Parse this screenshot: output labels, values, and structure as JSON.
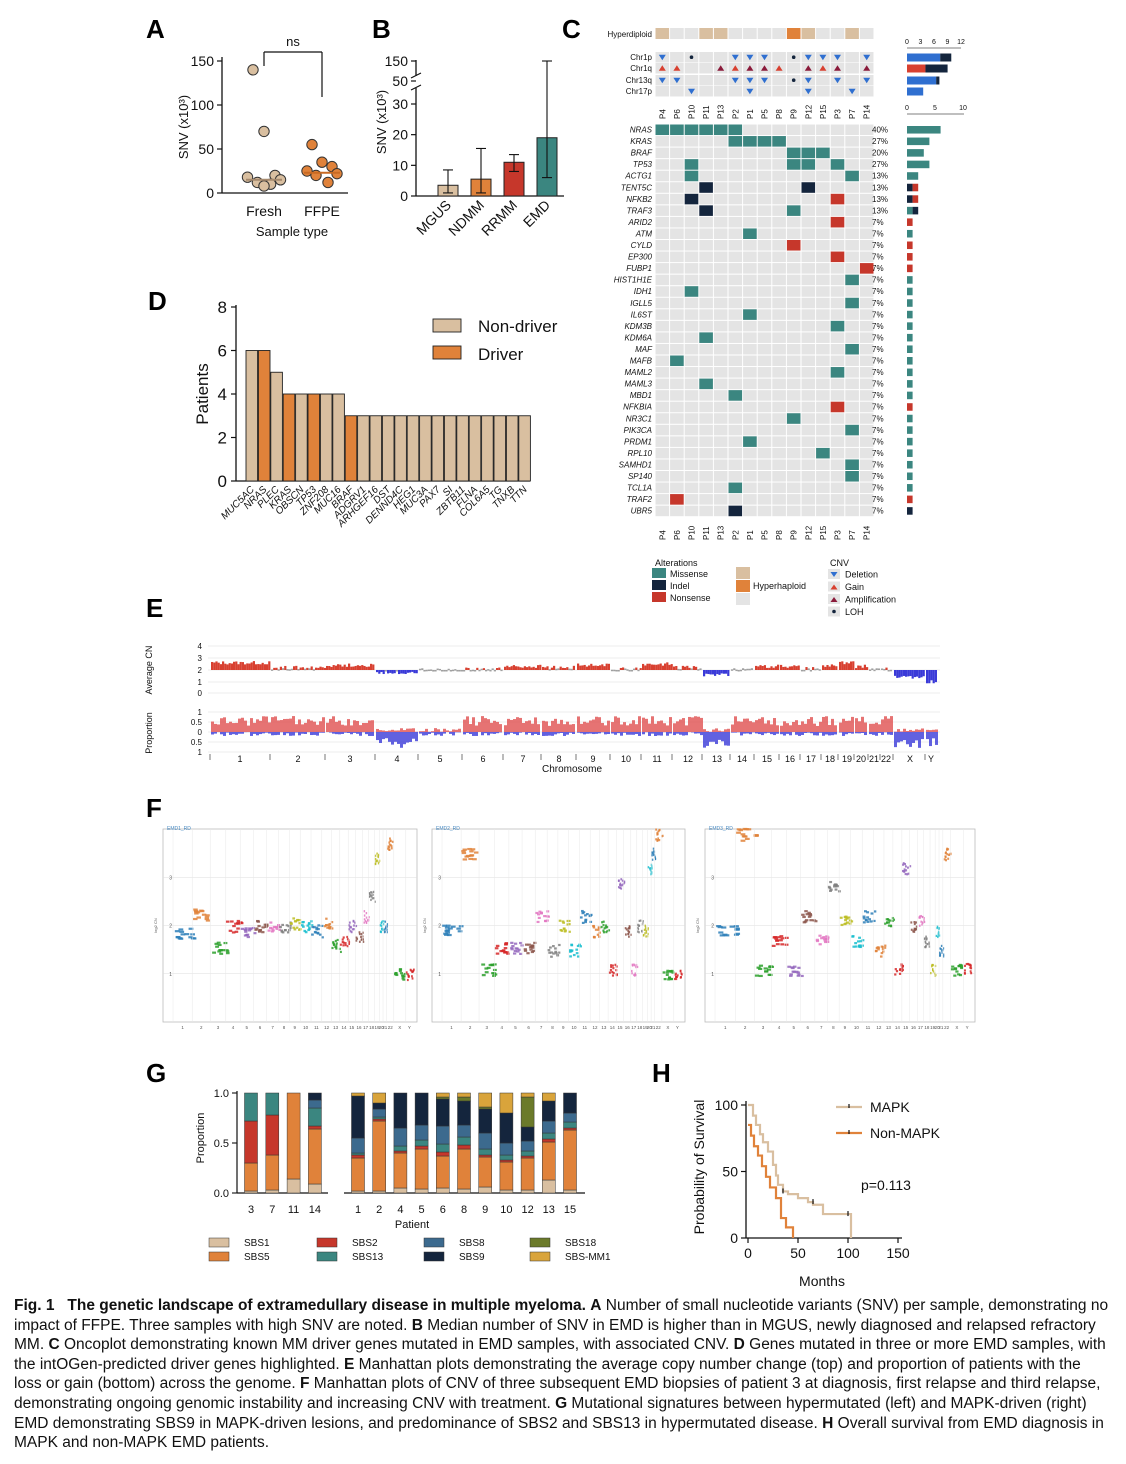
{
  "panels": {
    "A": {
      "label": "A",
      "chart_data": {
        "type": "scatter",
        "ylabel": "SNV (x10³)",
        "xlabel": "Sample type",
        "categories": [
          "Fresh",
          "FFPE"
        ],
        "yticks": [
          0,
          50,
          100,
          150
        ],
        "ylim": [
          0,
          160
        ],
        "series": [
          {
            "category": "Fresh",
            "values": [
              140,
              70,
              20,
              18,
              15,
              12,
              10,
              8
            ],
            "median": 15,
            "color": "#d9bfa0"
          },
          {
            "category": "FFPE",
            "values": [
              55,
              35,
              30,
              25,
              22,
              20,
              12
            ],
            "median": 23,
            "color": "#e0823a"
          }
        ],
        "annotation": "ns"
      }
    },
    "B": {
      "label": "B",
      "chart_data": {
        "type": "bar",
        "ylabel": "SNV (x10³)",
        "categories": [
          "MGUS",
          "NDMM",
          "RRMM",
          "EMD"
        ],
        "values": [
          3.5,
          5.5,
          11,
          19
        ],
        "err_low": [
          1,
          1,
          8,
          6
        ],
        "err_high": [
          8.5,
          15.5,
          13.5,
          150
        ],
        "colors": [
          "#d9bfa0",
          "#e0823a",
          "#c6372b",
          "#3b8680"
        ],
        "yticks": [
          "0",
          "10",
          "20",
          "30",
          "50",
          "150"
        ]
      }
    },
    "C": {
      "label": "C",
      "hyperdiploid_label": "Hyperdiploid",
      "cnv_rows": [
        "Chr1p",
        "Chr1q",
        "Chr13q",
        "Chr17p"
      ],
      "patients": [
        "P4",
        "P6",
        "P10",
        "P11",
        "P13",
        "P2",
        "P1",
        "P5",
        "P8",
        "P9",
        "P12",
        "P15",
        "P3",
        "P7",
        "P14"
      ],
      "genes": [
        "NRAS",
        "KRAS",
        "BRAF",
        "TP53",
        "ACTG1",
        "TENT5C",
        "NFKB2",
        "TRAF3",
        "ARID2",
        "ATM",
        "CYLD",
        "EP300",
        "FUBP1",
        "HIST1H1E",
        "IDH1",
        "IGLL5",
        "IL6ST",
        "KDM3B",
        "KDM6A",
        "MAF",
        "MAFB",
        "MAML2",
        "MAML3",
        "MBD1",
        "NFKBIA",
        "NR3C1",
        "PIK3CA",
        "PRDM1",
        "RPL10",
        "SAMHD1",
        "SP140",
        "TCL1A",
        "TRAF2",
        "UBR5"
      ],
      "percent": [
        "40%",
        "27%",
        "20%",
        "27%",
        "13%",
        "13%",
        "13%",
        "13%",
        "7%",
        "7%",
        "7%",
        "7%",
        "7%",
        "7%",
        "7%",
        "7%",
        "7%",
        "7%",
        "7%",
        "7%",
        "7%",
        "7%",
        "7%",
        "7%",
        "7%",
        "7%",
        "7%",
        "7%",
        "7%",
        "7%",
        "7%",
        "7%",
        "7%",
        "7%"
      ],
      "top_axis1": [
        "0",
        "3",
        "6",
        "9",
        "12"
      ],
      "top_axis2": [
        "0",
        "5",
        "10"
      ],
      "legend": {
        "alterations_title": "Alterations",
        "missense": "Missense",
        "indel": "Indel",
        "nonsense": "Nonsense",
        "hyperhaploid": "Hyperhaploid",
        "cnv_title": "CNV",
        "deletion": "Deletion",
        "gain": "Gain",
        "amplification": "Amplification",
        "loh": "LOH"
      }
    },
    "D": {
      "label": "D",
      "chart_data": {
        "type": "bar",
        "ylabel": "Patients",
        "categories": [
          "MUC5AC",
          "NRAS",
          "PLEC",
          "KRAS",
          "OBSCN",
          "TP53",
          "ZNF208",
          "MUC16",
          "BRAF",
          "ADGRV1",
          "ARHGEF16",
          "DST",
          "DENND4C",
          "HEG1",
          "MUC3A",
          "PAX7",
          "SI",
          "ZBTB11",
          "FLNA",
          "COL6A5",
          "TG",
          "TNXB",
          "TTN"
        ],
        "values": [
          6,
          6,
          5,
          4,
          4,
          4,
          4,
          4,
          3,
          3,
          3,
          3,
          3,
          3,
          3,
          3,
          3,
          3,
          3,
          3,
          3,
          3,
          3
        ],
        "driver": [
          false,
          true,
          false,
          true,
          false,
          true,
          false,
          false,
          true,
          false,
          false,
          false,
          false,
          false,
          false,
          false,
          false,
          false,
          false,
          false,
          false,
          false,
          false
        ],
        "yticks": [
          0,
          2,
          4,
          6,
          8
        ],
        "legend": [
          "Non-driver",
          "Driver"
        ]
      }
    },
    "E": {
      "label": "E",
      "ylabel_top": "Average CN",
      "ylabel_bottom": "Proportion",
      "xlabel": "Chromosome",
      "top_ticks": [
        "4",
        "3",
        "2",
        "1",
        "0"
      ],
      "bottom_ticks": [
        "1",
        "0.5",
        "0",
        "0.5",
        "1"
      ],
      "chromosomes": [
        "1",
        "2",
        "3",
        "4",
        "5",
        "6",
        "7",
        "8",
        "9",
        "10",
        "11",
        "12",
        "13",
        "14",
        "15",
        "16",
        "17",
        "18",
        "19",
        "20",
        "21",
        "22",
        "X",
        "Y"
      ]
    },
    "F": {
      "label": "F",
      "plot_titles": [
        "EMD1_RD",
        "EMD2_RD",
        "EMD3_RD"
      ],
      "y_ticks": [
        "3",
        "2",
        "1"
      ],
      "x_ticks": [
        "1",
        "2",
        "3",
        "4",
        "5",
        "6",
        "7",
        "8",
        "9",
        "10",
        "11",
        "12",
        "13",
        "14",
        "15",
        "16",
        "17",
        "18",
        "19",
        "20",
        "21",
        "22",
        "X",
        "Y"
      ],
      "ylabel": "log2 CN"
    },
    "G": {
      "label": "G",
      "chart_data": {
        "type": "bar",
        "ylabel": "Proportion",
        "xlabel": "Patient",
        "yticks": [
          "0.0",
          "0.5",
          "1.0"
        ],
        "patients_left": [
          "3",
          "7",
          "11",
          "14"
        ],
        "patients_right": [
          "1",
          "2",
          "4",
          "5",
          "6",
          "8",
          "9",
          "10",
          "12",
          "13",
          "15"
        ],
        "signatures": [
          "SBS1",
          "SBS2",
          "SBS8",
          "SBS18",
          "SBS5",
          "SBS13",
          "SBS9",
          "SBS-MM1"
        ],
        "signature_colors": [
          "#d9bfa0",
          "#c6372b",
          "#3c6a8e",
          "#6b7a2a",
          "#e0823a",
          "#3b8680",
          "#14253d",
          "#d9a43b"
        ]
      }
    },
    "H": {
      "label": "H",
      "chart_data": {
        "type": "line",
        "ylabel": "Probability of Survival",
        "xlabel": "Months",
        "xticks": [
          0,
          50,
          100,
          150
        ],
        "yticks": [
          0,
          50,
          100
        ],
        "series": [
          {
            "name": "MAPK",
            "color": "#d9bfa0",
            "x": [
              0,
              5,
              8,
              12,
              15,
              20,
              25,
              28,
              30,
              35,
              40,
              50,
              60,
              65,
              75,
              100,
              103
            ],
            "y": [
              100,
              92,
              85,
              78,
              72,
              65,
              55,
              47,
              40,
              35,
              33,
              30,
              27,
              25,
              18,
              18,
              0
            ]
          },
          {
            "name": "Non-MAPK",
            "color": "#e0823a",
            "x": [
              0,
              3,
              6,
              10,
              14,
              18,
              22,
              28,
              33,
              38,
              42,
              45
            ],
            "y": [
              85,
              77,
              69,
              62,
              54,
              46,
              38,
              30,
              15,
              8,
              8,
              0
            ]
          }
        ],
        "annotation": "p=0.113"
      }
    }
  },
  "caption": {
    "fig_label": "Fig. 1",
    "title": "The genetic landscape of extramedullary disease in multiple myeloma.",
    "A": "A",
    "A_text": " Number of small nucleotide variants (SNV) per sample, demonstrating no impact of FFPE. Three samples with high SNV are noted. ",
    "B": "B",
    "B_text": " Median number of SNV in EMD is higher than in MGUS, newly diagnosed and relapsed refractory MM. ",
    "C": "C",
    "C_text": " Oncoplot demonstrating known MM driver genes mutated in EMD samples, with associated CNV. ",
    "D": "D",
    "D_text": " Genes mutated in three or more EMD samples, with the intOGen-predicted driver genes highlighted. ",
    "E": "E",
    "E_text": " Manhattan plots demonstrating the average copy number change (top) and proportion of patients with the loss or gain (bottom) across the genome. ",
    "F": "F",
    "F_text": " Manhattan plots of CNV of three subsequent EMD biopsies of patient 3 at diagnosis, first relapse and third relapse, demonstrating ongoing genomic instability and increasing CNV with treatment. ",
    "G": "G",
    "G_text": " Mutational signatures between hypermutated (left) and MAPK-driven (right) EMD demonstrating SBS9 in MAPK-driven lesions, and predominance of SBS2 and SBS13 in hypermutated disease. ",
    "H": "H",
    "H_text": " Overall survival from EMD diagnosis in MAPK and non-MAPK EMD patients."
  }
}
